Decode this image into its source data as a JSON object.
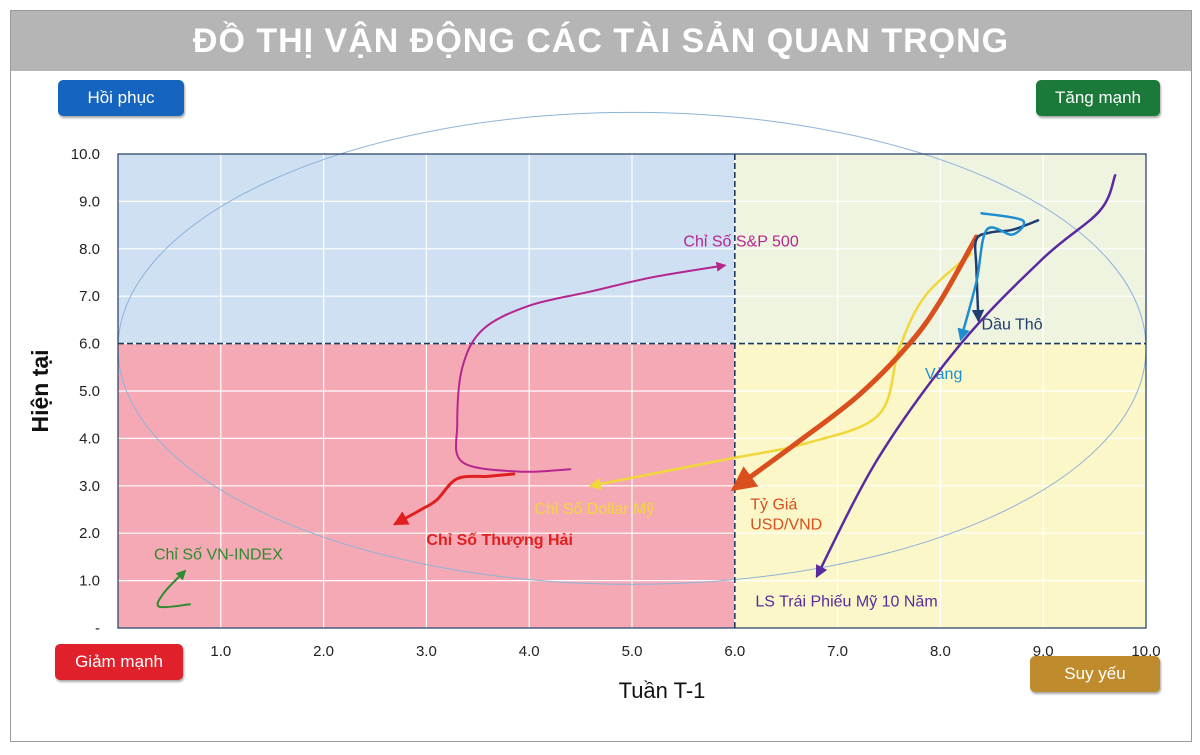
{
  "title": "ĐỒ THỊ VẬN ĐỘNG CÁC TÀI SẢN QUAN TRỌNG",
  "quadrants": {
    "recover": {
      "label": "Hồi phục",
      "color": "#1565c0"
    },
    "strong": {
      "label": "Tăng mạnh",
      "color": "#1b7a3a"
    },
    "decline": {
      "label": "Giảm mạnh",
      "color": "#e0202a"
    },
    "weak": {
      "label": "Suy yếu",
      "color": "#c08b2c"
    }
  },
  "chart_data": {
    "type": "line",
    "title": "",
    "xlabel": "Tuần T-1",
    "ylabel": "Hiện tại",
    "xlim": [
      0,
      10
    ],
    "ylim": [
      0,
      10
    ],
    "x_ticks": [
      "-",
      "1.0",
      "2.0",
      "3.0",
      "4.0",
      "5.0",
      "6.0",
      "7.0",
      "8.0",
      "9.0",
      "10.0"
    ],
    "y_ticks": [
      "-",
      "1.0",
      "2.0",
      "3.0",
      "4.0",
      "5.0",
      "6.0",
      "7.0",
      "8.0",
      "9.0",
      "10.0"
    ],
    "x_tick_values": [
      0,
      1,
      2,
      3,
      4,
      5,
      6,
      7,
      8,
      9,
      10
    ],
    "y_tick_values": [
      0,
      1,
      2,
      3,
      4,
      5,
      6,
      7,
      8,
      9,
      10
    ],
    "dividers": {
      "x": 6,
      "y": 6
    },
    "grid": true,
    "region_colors": {
      "top_left": "#cfe0f3",
      "top_right": "#eef4e0",
      "bottom_left": "#f5a9b5",
      "bottom_right": "#fbf7c8"
    },
    "series": [
      {
        "name": "Chỉ Số S&P 500",
        "color": "#b6268f",
        "width": 2,
        "x": [
          4.4,
          3.9,
          3.35,
          3.3,
          3.35,
          3.55,
          4.0,
          4.6,
          5.2,
          5.9
        ],
        "y": [
          3.35,
          3.3,
          3.5,
          4.3,
          5.5,
          6.3,
          6.8,
          7.1,
          7.4,
          7.65
        ],
        "label_x": 5.5,
        "label_y": 8.05
      },
      {
        "name": "Chỉ Số Thượng Hải",
        "color": "#e02020",
        "width": 3,
        "x": [
          3.85,
          3.6,
          3.3,
          3.1,
          2.95,
          2.7
        ],
        "y": [
          3.25,
          3.2,
          3.15,
          2.7,
          2.5,
          2.2
        ],
        "label_x": 3.0,
        "label_y": 1.75
      },
      {
        "name": "Chỉ Số Dollar Mỹ",
        "color": "#f0d83a",
        "width": 2.5,
        "x": [
          8.3,
          7.85,
          7.6,
          7.4,
          6.7,
          5.9,
          4.6
        ],
        "y": [
          7.9,
          7.0,
          5.9,
          4.5,
          3.9,
          3.55,
          3.0
        ],
        "label_x": 4.05,
        "label_y": 2.4
      },
      {
        "name": "Tỷ Giá USD/VND",
        "color": "#d94f1e",
        "width": 5,
        "x": [
          8.35,
          8.0,
          7.7,
          7.2,
          6.6,
          6.0
        ],
        "y": [
          8.25,
          6.9,
          6.0,
          4.9,
          3.9,
          2.95
        ],
        "label_x": 6.15,
        "label_y": 2.5,
        "label_lines": [
          "Tỷ Giá",
          "USD/VND"
        ]
      },
      {
        "name": "Dầu Thô",
        "color": "#1f3d6e",
        "width": 2.5,
        "x": [
          8.95,
          8.7,
          8.5,
          8.35,
          8.35,
          8.37
        ],
        "y": [
          8.6,
          8.4,
          8.35,
          8.2,
          7.6,
          6.5
        ],
        "label_x": 8.4,
        "label_y": 6.3
      },
      {
        "name": "Vàng",
        "color": "#1e8ed0",
        "width": 2.5,
        "x": [
          8.4,
          8.8,
          8.7,
          8.45,
          8.35,
          8.2
        ],
        "y": [
          8.75,
          8.6,
          8.3,
          8.4,
          7.3,
          6.1
        ],
        "label_x": 7.85,
        "label_y": 5.25
      },
      {
        "name": "LS Trái Phiếu Mỹ 10 Năm",
        "color": "#5a2aa0",
        "width": 2.5,
        "x": [
          9.7,
          9.55,
          9.0,
          8.2,
          7.4,
          6.8
        ],
        "y": [
          9.55,
          8.8,
          7.8,
          6.0,
          3.6,
          1.1
        ],
        "label_x": 6.2,
        "label_y": 0.45
      },
      {
        "name": "Chỉ Số VN-INDEX",
        "color": "#2e8b2e",
        "width": 2,
        "x": [
          0.7,
          0.4,
          0.45,
          0.65
        ],
        "y": [
          0.5,
          0.45,
          0.75,
          1.2
        ],
        "label_x": 0.35,
        "label_y": 1.45
      }
    ]
  }
}
